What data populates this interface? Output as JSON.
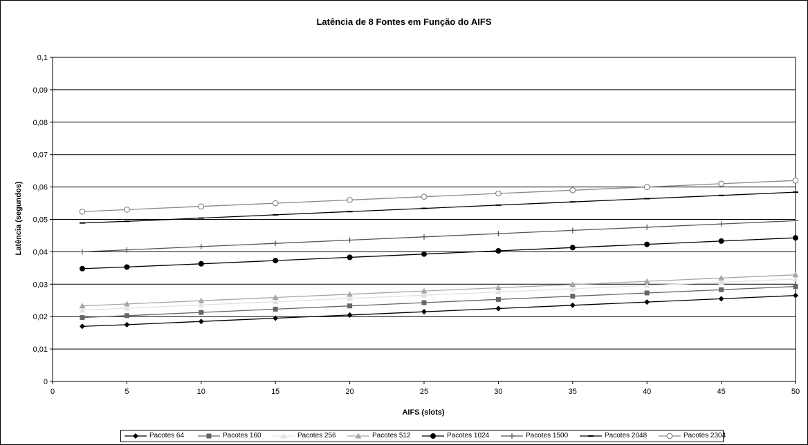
{
  "chart_data": {
    "type": "line",
    "title": "Latência de 8 Fontes em Função do AIFS",
    "xlabel": "AIFS (slots)",
    "ylabel": "Latência (segundos)",
    "xlim": [
      0,
      50
    ],
    "ylim": [
      0,
      0.1
    ],
    "x_ticks": [
      "0",
      "5",
      "10",
      "15",
      "20",
      "25",
      "30",
      "35",
      "40",
      "45",
      "50"
    ],
    "y_ticks": [
      "0",
      "0,01",
      "0,02",
      "0,03",
      "0,04",
      "0,05",
      "0,06",
      "0,07",
      "0,08",
      "0,09",
      "0,1"
    ],
    "grid": "horizontal",
    "legend_position": "bottom",
    "x": [
      2,
      5,
      10,
      15,
      20,
      25,
      30,
      35,
      40,
      45,
      50
    ],
    "series": [
      {
        "name": "Pacotes 64",
        "color": "#000000",
        "marker": "diamond",
        "values": [
          0.017,
          0.0175,
          0.0185,
          0.0195,
          0.0205,
          0.0215,
          0.0225,
          0.0235,
          0.0245,
          0.0255,
          0.0265
        ]
      },
      {
        "name": "Pacotes 160",
        "color": "#666666",
        "marker": "square",
        "values": [
          0.0197,
          0.0203,
          0.0213,
          0.0223,
          0.0233,
          0.0243,
          0.0253,
          0.0263,
          0.0273,
          0.0283,
          0.0293
        ]
      },
      {
        "name": "Pacotes 256",
        "color": "#e2e2e2",
        "marker": "triangle",
        "values": [
          0.022,
          0.0226,
          0.0236,
          0.0246,
          0.0256,
          0.0266,
          0.0276,
          0.0286,
          0.0296,
          0.0306,
          0.0316
        ]
      },
      {
        "name": "Pacotes 512",
        "color": "#a6a6a6",
        "marker": "triangle",
        "values": [
          0.0233,
          0.0239,
          0.0249,
          0.0259,
          0.0269,
          0.0279,
          0.0289,
          0.0299,
          0.0309,
          0.0319,
          0.0329
        ]
      },
      {
        "name": "Pacotes 1024",
        "color": "#000000",
        "marker": "circle",
        "values": [
          0.0348,
          0.0353,
          0.0363,
          0.0373,
          0.0383,
          0.0393,
          0.0403,
          0.0413,
          0.0423,
          0.0433,
          0.0443
        ]
      },
      {
        "name": "Pacotes 1500",
        "color": "#555555",
        "marker": "plus",
        "values": [
          0.04,
          0.0406,
          0.0416,
          0.0426,
          0.0436,
          0.0446,
          0.0456,
          0.0466,
          0.0476,
          0.0486,
          0.0496
        ]
      },
      {
        "name": "Pacotes 2048",
        "color": "#000000",
        "marker": "dash",
        "values": [
          0.0489,
          0.0494,
          0.0504,
          0.0514,
          0.0524,
          0.0534,
          0.0544,
          0.0554,
          0.0564,
          0.0574,
          0.0584
        ]
      },
      {
        "name": "Pacotes 2304",
        "color": "#888888",
        "marker": "open-circle",
        "values": [
          0.0524,
          0.053,
          0.054,
          0.055,
          0.056,
          0.057,
          0.058,
          0.059,
          0.06,
          0.061,
          0.062
        ]
      }
    ]
  }
}
